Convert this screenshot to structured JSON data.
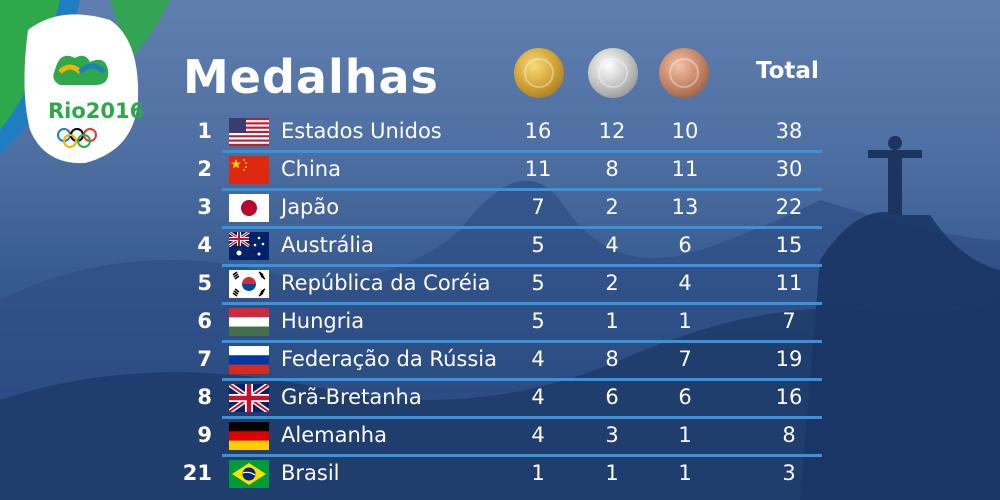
{
  "header": {
    "title": "Medalhas",
    "total_label": "Total",
    "logo_text": "Rio2016",
    "medals": [
      "gold-medal",
      "silver-medal",
      "bronze-medal"
    ]
  },
  "rows": [
    {
      "rank": "1",
      "country": "Estados Unidos",
      "flag": "usa-flag-icon",
      "gold": "16",
      "silver": "12",
      "bronze": "10",
      "total": "38"
    },
    {
      "rank": "2",
      "country": "China",
      "flag": "china-flag-icon",
      "gold": "11",
      "silver": "8",
      "bronze": "11",
      "total": "30"
    },
    {
      "rank": "3",
      "country": "Japão",
      "flag": "japan-flag-icon",
      "gold": "7",
      "silver": "2",
      "bronze": "13",
      "total": "22"
    },
    {
      "rank": "4",
      "country": "Austrália",
      "flag": "australia-flag-icon",
      "gold": "5",
      "silver": "4",
      "bronze": "6",
      "total": "15"
    },
    {
      "rank": "5",
      "country": "República da Coréia",
      "flag": "korea-flag-icon",
      "gold": "5",
      "silver": "2",
      "bronze": "4",
      "total": "11"
    },
    {
      "rank": "6",
      "country": "Hungria",
      "flag": "hungary-flag-icon",
      "gold": "5",
      "silver": "1",
      "bronze": "1",
      "total": "7"
    },
    {
      "rank": "7",
      "country": "Federação da Rússia",
      "flag": "russia-flag-icon",
      "gold": "4",
      "silver": "8",
      "bronze": "7",
      "total": "19"
    },
    {
      "rank": "8",
      "country": "Grã-Bretanha",
      "flag": "uk-flag-icon",
      "gold": "4",
      "silver": "6",
      "bronze": "6",
      "total": "16"
    },
    {
      "rank": "9",
      "country": "Alemanha",
      "flag": "germany-flag-icon",
      "gold": "4",
      "silver": "3",
      "bronze": "1",
      "total": "8"
    },
    {
      "rank": "21",
      "country": "Brasil",
      "flag": "brazil-flag-icon",
      "gold": "1",
      "silver": "1",
      "bronze": "1",
      "total": "3"
    }
  ],
  "colors": {
    "accent_line": "#3a93d8",
    "green": "#2ea84a",
    "gold": "#d5a63a",
    "silver": "#c8c8c8",
    "bronze": "#c98a6a"
  }
}
